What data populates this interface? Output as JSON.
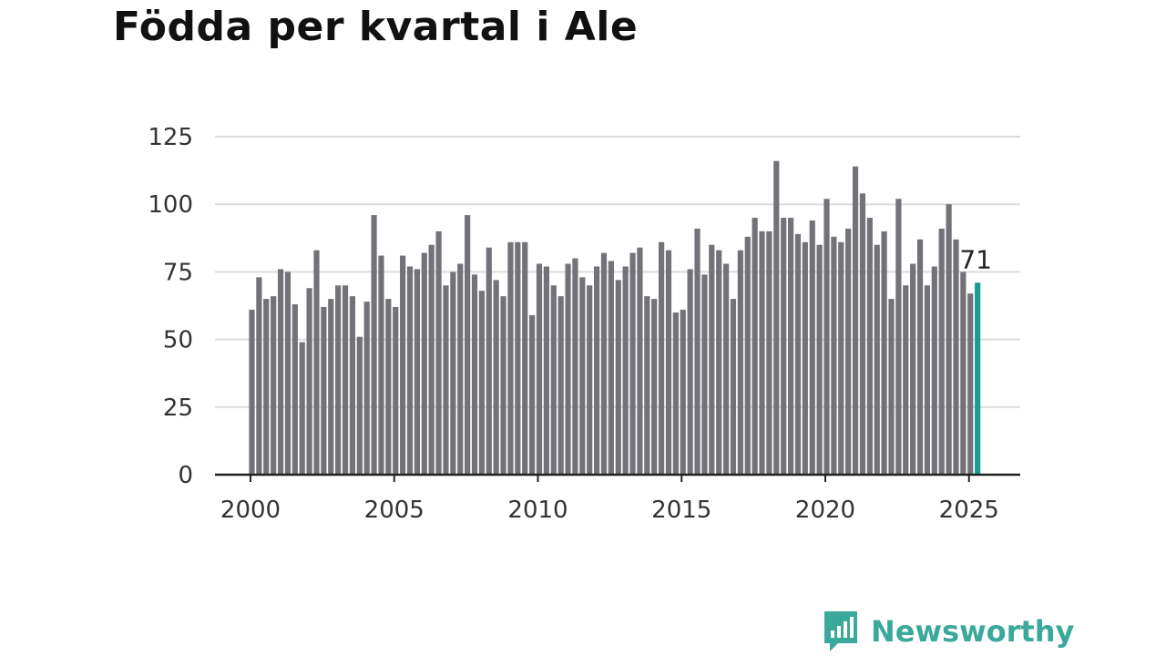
{
  "title": "Födda per kvartal i Ale",
  "brand": {
    "name": "Newsworthy",
    "color": "#3aa89b"
  },
  "chart_data": {
    "type": "bar",
    "title": "Födda per kvartal i Ale",
    "xlabel": "",
    "ylabel": "",
    "x_tick_labels": [
      "2000",
      "2005",
      "2010",
      "2015",
      "2020",
      "2025"
    ],
    "y_ticks": [
      0,
      25,
      50,
      75,
      100,
      125
    ],
    "ylim": [
      0,
      125
    ],
    "xlim": [
      1999.5,
      2025.9
    ],
    "grid": true,
    "bar_color": "#737278",
    "highlight_color": "#1b9c8f",
    "highlight_label": "71",
    "series": [
      {
        "x": [
          2000.0,
          2000.25,
          2000.5,
          2000.75,
          2001.0,
          2001.25,
          2001.5,
          2001.75,
          2002.0,
          2002.25,
          2002.5,
          2002.75,
          2003.0,
          2003.25,
          2003.5,
          2003.75,
          2004.0,
          2004.25,
          2004.5,
          2004.75,
          2005.0,
          2005.25,
          2005.5,
          2005.75,
          2006.0,
          2006.25,
          2006.5,
          2006.75,
          2007.0,
          2007.25,
          2007.5,
          2007.75,
          2008.0,
          2008.25,
          2008.5,
          2008.75,
          2009.0,
          2009.25,
          2009.5,
          2009.75,
          2010.0,
          2010.25,
          2010.5,
          2010.75,
          2011.0,
          2011.25,
          2011.5,
          2011.75,
          2012.0,
          2012.25,
          2012.5,
          2012.75,
          2013.0,
          2013.25,
          2013.5,
          2013.75,
          2014.0,
          2014.25,
          2014.5,
          2014.75,
          2015.0,
          2015.25,
          2015.5,
          2015.75,
          2016.0,
          2016.25,
          2016.5,
          2016.75,
          2017.0,
          2017.25,
          2017.5,
          2017.75,
          2018.0,
          2018.25,
          2018.5,
          2018.75,
          2019.0,
          2019.25,
          2019.5,
          2019.75,
          2020.0,
          2020.25,
          2020.5,
          2020.75,
          2021.0,
          2021.25,
          2021.5,
          2021.75,
          2022.0,
          2022.25,
          2022.5,
          2022.75,
          2023.0,
          2023.25,
          2023.5,
          2023.75,
          2024.0,
          2024.25,
          2024.5,
          2024.75,
          2025.0,
          2025.25
        ],
        "values": [
          61,
          73,
          65,
          66,
          76,
          75,
          63,
          49,
          69,
          83,
          62,
          65,
          70,
          70,
          66,
          51,
          64,
          96,
          81,
          65,
          62,
          81,
          77,
          76,
          82,
          85,
          90,
          70,
          75,
          78,
          96,
          74,
          68,
          84,
          72,
          66,
          86,
          86,
          86,
          59,
          78,
          77,
          70,
          66,
          78,
          80,
          73,
          70,
          77,
          82,
          79,
          72,
          77,
          82,
          84,
          66,
          65,
          86,
          83,
          60,
          61,
          76,
          91,
          74,
          85,
          83,
          78,
          65,
          83,
          88,
          95,
          90,
          90,
          116,
          95,
          95,
          89,
          86,
          94,
          85,
          102,
          88,
          86,
          91,
          114,
          104,
          95,
          85,
          90,
          65,
          102,
          70,
          78,
          87,
          70,
          77,
          91,
          100,
          87,
          75,
          67,
          71
        ]
      }
    ]
  }
}
